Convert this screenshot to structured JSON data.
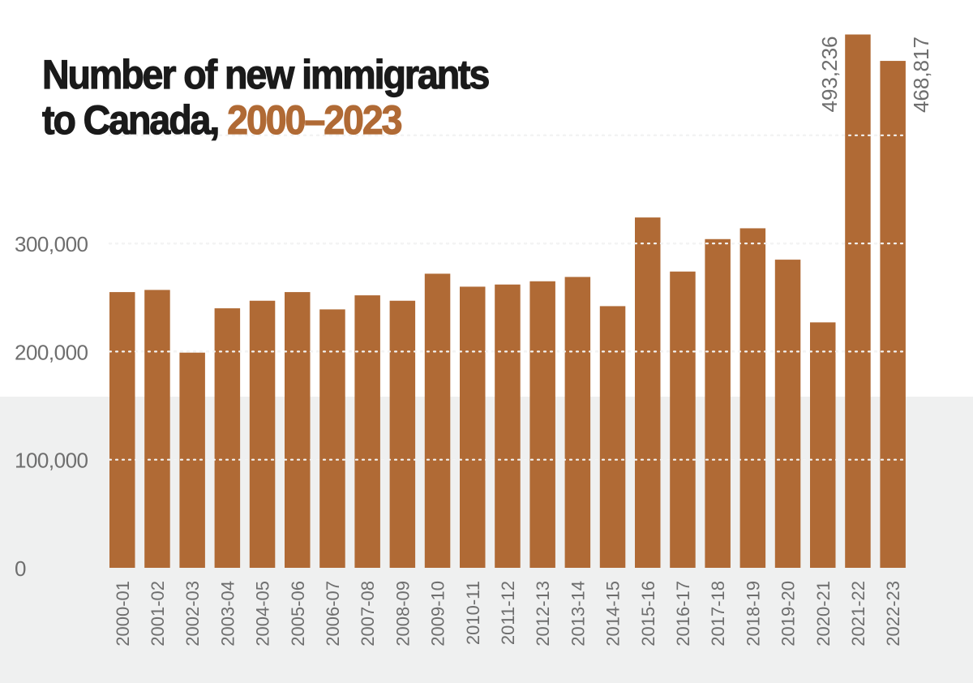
{
  "chart_data": {
    "type": "bar",
    "title": "Number of new immigrants to Canada, 2000–2023",
    "title_parts": {
      "main": "Number of new immigrants",
      "line2": "to Canada, ",
      "accent": "2000–2023"
    },
    "xlabel": "",
    "ylabel": "",
    "ylim": [
      0,
      500000
    ],
    "yticks": [
      0,
      100000,
      200000,
      300000,
      400000
    ],
    "ytick_labels": [
      "0",
      "100,000",
      "200,000",
      "300,000",
      ""
    ],
    "grid": true,
    "legend": "none",
    "bar_color": "#b06a35",
    "categories": [
      "2000-01",
      "2001-02",
      "2002-03",
      "2003-04",
      "2004-05",
      "2005-06",
      "2006-07",
      "2007-08",
      "2008-09",
      "2009-10",
      "2010-11",
      "2011-12",
      "2012-13",
      "2013-14",
      "2014-15",
      "2015-16",
      "2016-17",
      "2017-18",
      "2018-19",
      "2019-20",
      "2020-21",
      "2021-22",
      "2022-23"
    ],
    "values": [
      255000,
      257000,
      199000,
      240000,
      247000,
      255000,
      239000,
      252000,
      247000,
      272000,
      260000,
      262000,
      265000,
      269000,
      242000,
      324000,
      274000,
      304000,
      314000,
      285000,
      227000,
      493236,
      468817
    ],
    "annotations": [
      {
        "category": "2021-22",
        "text": "493,236"
      },
      {
        "category": "2022-23",
        "text": "468,817"
      }
    ]
  }
}
